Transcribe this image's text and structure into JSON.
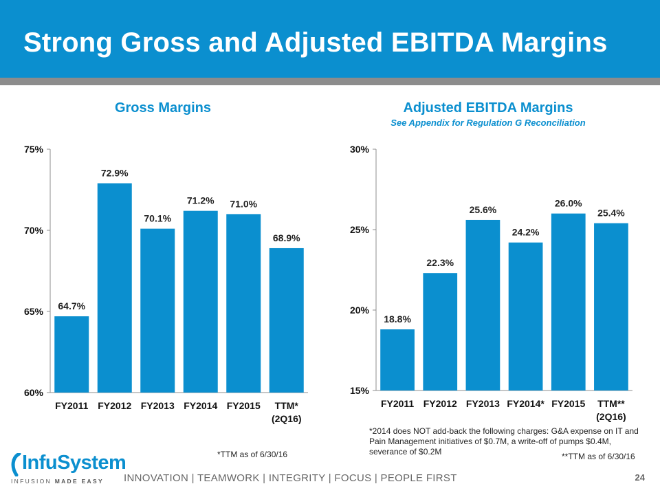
{
  "slide": {
    "title": "Strong Gross and Adjusted EBITDA Margins",
    "page_number": "24",
    "values_line": "INNOVATION  |  TEAMWORK  |  INTEGRITY  |  FOCUS  |  PEOPLE FIRST",
    "logo": {
      "word": "InfuSystem",
      "tagline_a": "INFUSION ",
      "tagline_b": "MADE EASY"
    },
    "colors": {
      "brand_blue": "#0b8fcf",
      "bar_blue": "#0b8fcf",
      "bar_grey": "#8c8c8c"
    }
  },
  "chart_data": [
    {
      "type": "bar",
      "title": "Gross Margins",
      "subtitle": "",
      "categories": [
        "FY2011",
        "FY2012",
        "FY2013",
        "FY2014",
        "FY2015",
        "TTM*"
      ],
      "category_sublabels": [
        "",
        "",
        "",
        "",
        "",
        "(2Q16)"
      ],
      "values": [
        64.7,
        72.9,
        70.1,
        71.2,
        71.0,
        68.9
      ],
      "data_labels": [
        "64.7%",
        "72.9%",
        "70.1%",
        "71.2%",
        "71.0%",
        "68.9%"
      ],
      "ylim": [
        60,
        75
      ],
      "yticks": [
        60,
        65,
        70,
        75
      ],
      "ytick_labels": [
        "60%",
        "65%",
        "70%",
        "75%"
      ],
      "footnote": "*TTM as of 6/30/16"
    },
    {
      "type": "bar",
      "title": "Adjusted EBITDA Margins",
      "subtitle": "See Appendix for Regulation G Reconciliation",
      "categories": [
        "FY2011",
        "FY2012",
        "FY2013",
        "FY2014*",
        "FY2015",
        "TTM**"
      ],
      "category_sublabels": [
        "",
        "",
        "",
        "",
        "",
        "(2Q16)"
      ],
      "values": [
        18.8,
        22.3,
        25.6,
        24.2,
        26.0,
        25.4
      ],
      "data_labels": [
        "18.8%",
        "22.3%",
        "25.6%",
        "24.2%",
        "26.0%",
        "25.4%"
      ],
      "ylim": [
        15,
        30
      ],
      "yticks": [
        15,
        20,
        25,
        30
      ],
      "ytick_labels": [
        "15%",
        "20%",
        "25%",
        "30%"
      ],
      "note": "*2014 does NOT add-back the following charges: G&A expense on IT and Pain Management initiatives of $0.7M, a write-off of pumps $0.4M, severance of $0.2M",
      "footnote": "**TTM as of 6/30/16"
    }
  ]
}
